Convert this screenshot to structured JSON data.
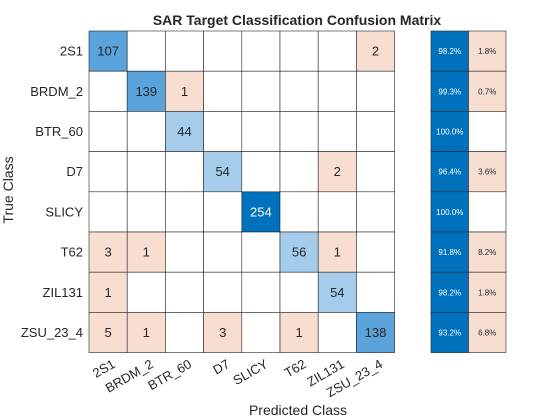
{
  "chart_data": {
    "type": "heatmap",
    "title": "SAR Target Classification Confusion Matrix",
    "xlabel": "Predicted Class",
    "ylabel": "True Class",
    "classes": [
      "2S1",
      "BRDM_2",
      "BTR_60",
      "D7",
      "SLICY",
      "T62",
      "ZIL131",
      "ZSU_23_4"
    ],
    "matrix": [
      [
        107,
        0,
        0,
        0,
        0,
        0,
        0,
        2
      ],
      [
        0,
        139,
        1,
        0,
        0,
        0,
        0,
        0
      ],
      [
        0,
        0,
        44,
        0,
        0,
        0,
        0,
        0
      ],
      [
        0,
        0,
        0,
        54,
        0,
        0,
        2,
        0
      ],
      [
        0,
        0,
        0,
        0,
        254,
        0,
        0,
        0
      ],
      [
        3,
        1,
        0,
        0,
        0,
        56,
        1,
        0
      ],
      [
        1,
        0,
        0,
        0,
        0,
        0,
        54,
        0
      ],
      [
        5,
        1,
        0,
        3,
        0,
        1,
        0,
        138
      ]
    ],
    "row_summary": {
      "correct": [
        "98.2%",
        "99.3%",
        "100.0%",
        "96.4%",
        "100.0%",
        "91.8%",
        "98.2%",
        "93.2%"
      ],
      "incorrect": [
        "1.8%",
        "0.7%",
        "",
        "3.6%",
        "",
        "8.2%",
        "1.8%",
        "6.8%"
      ]
    },
    "colors": {
      "diagonal_high": "#0072bd",
      "diagonal_mid": "#5aa3dc",
      "diagonal_low": "#a5cdeb",
      "off_diagonal": "#f8ddd1",
      "summary_correct": "#0072bd",
      "summary_incorrect": "#f8ddd1",
      "grid": "#262626"
    }
  }
}
